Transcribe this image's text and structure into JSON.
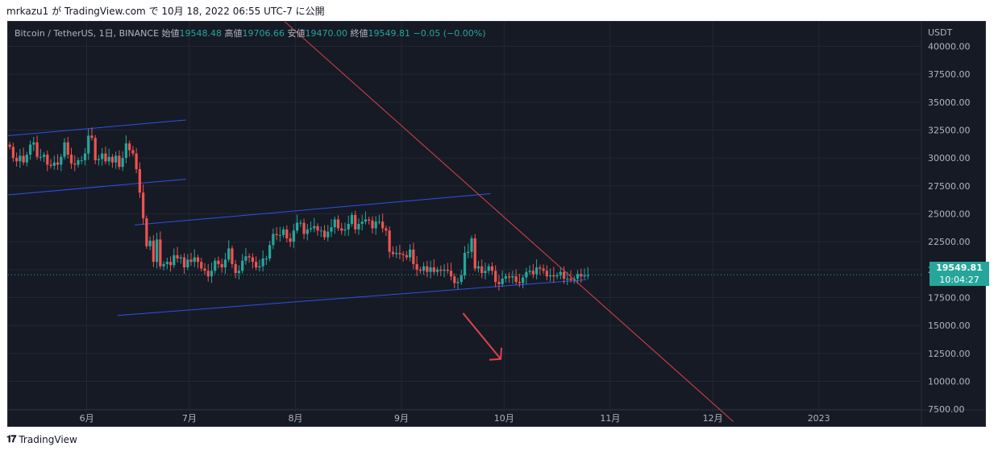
{
  "publish_line": {
    "user": "mrkazu1",
    "text": " が TradingView.com で 10月 18, 2022 06:55 UTC-7 に公開"
  },
  "legend": {
    "symbol": "Bitcoin / TetherUS, 1日, BINANCE",
    "open_label": "始値",
    "open": "19548.48",
    "high_label": "高値",
    "high": "19706.66",
    "low_label": "安値",
    "low": "19470.00",
    "close_label": "終値",
    "close": "19549.81",
    "change": "−0.05 (−0.00%)"
  },
  "price_axis": {
    "currency": "USDT",
    "current_price": "19549.81",
    "countdown": "10:04:27"
  },
  "footer": {
    "brand": "TradingView"
  },
  "colors": {
    "up": "#26a69a",
    "down": "#ef5350",
    "channel": "#2d52e6",
    "trend": "#e0404a",
    "bg": "#161a25"
  },
  "chart_data": {
    "type": "candlestick",
    "title": "Bitcoin / TetherUS, 1日, BINANCE",
    "ylim": [
      6000,
      42200
    ],
    "yticks": [
      40000,
      37500,
      35000,
      32500,
      30000,
      27500,
      25000,
      22500,
      20000,
      17500,
      15000,
      12500,
      10000,
      7500
    ],
    "x_start": "2022-05-09",
    "x_end": "2023-01-31",
    "xticks": [
      {
        "date": "2022-06-01",
        "label": "6月"
      },
      {
        "date": "2022-07-01",
        "label": "7月"
      },
      {
        "date": "2022-08-01",
        "label": "8月"
      },
      {
        "date": "2022-09-01",
        "label": "9月"
      },
      {
        "date": "2022-10-01",
        "label": "10月"
      },
      {
        "date": "2022-11-01",
        "label": "11月"
      },
      {
        "date": "2022-12-01",
        "label": "12月"
      },
      {
        "date": "2023-01-01",
        "label": "2023"
      }
    ],
    "close_start": "2022-05-09",
    "closes": [
      31000,
      30000,
      29700,
      30200,
      29600,
      30300,
      31200,
      31400,
      30100,
      30100,
      30300,
      29400,
      29300,
      29600,
      29400,
      30100,
      31400,
      30300,
      29500,
      29400,
      29800,
      29800,
      30400,
      32000,
      31800,
      29800,
      29900,
      30400,
      29700,
      30100,
      29600,
      30200,
      29200,
      30000,
      31300,
      30700,
      30400,
      29000,
      26900,
      24600,
      22100,
      22600,
      20700,
      22700,
      20300,
      20500,
      20700,
      20400,
      21300,
      21000,
      21100,
      20200,
      20900,
      20700,
      21100,
      20700,
      20100,
      19900,
      19400,
      19900,
      20800,
      20500,
      20200,
      20900,
      21900,
      20500,
      19700,
      19900,
      20800,
      21200,
      21100,
      20700,
      20200,
      20300,
      21000,
      21000,
      22200,
      23200,
      23100,
      23100,
      23600,
      22800,
      22500,
      23500,
      24200,
      24200,
      23200,
      23600,
      23700,
      23900,
      23500,
      23500,
      22900,
      23400,
      23800,
      24500,
      23700,
      23500,
      23600,
      24100,
      24900,
      23600,
      24100,
      24300,
      24500,
      24400,
      23700,
      24300,
      24300,
      23700,
      23500,
      21600,
      21400,
      21500,
      21400,
      21300,
      21100,
      21800,
      20500,
      20000,
      19900,
      20300,
      19800,
      20200,
      19800,
      20000,
      19900,
      20000,
      19900,
      19400,
      18800,
      18900,
      19500,
      21500,
      21600,
      22800,
      20100,
      20300,
      19700,
      19900,
      20300,
      19900,
      18900,
      18700,
      19200,
      19400,
      19300,
      19400,
      18900,
      18800,
      19300,
      19800,
      19900,
      19600,
      20200,
      20100,
      19900,
      19400,
      19500,
      19400,
      19500,
      19800,
      19200,
      19200,
      19100,
      19200,
      19600,
      19400,
      19500,
      19500
    ],
    "channels": [
      {
        "x1": "2022-05-09",
        "y1": 32000,
        "x2": "2022-06-30",
        "y2": 33400
      },
      {
        "x1": "2022-05-09",
        "y1": 26700,
        "x2": "2022-06-30",
        "y2": 28100
      },
      {
        "x1": "2022-06-15",
        "y1": 24000,
        "x2": "2022-09-27",
        "y2": 26800
      },
      {
        "x1": "2022-06-10",
        "y1": 15900,
        "x2": "2022-10-25",
        "y2": 19100
      }
    ],
    "trendline": {
      "x1": "2022-07-26",
      "y1": 43000,
      "x2": "2022-12-07",
      "y2": 6400
    },
    "arrow": {
      "x1": "2022-09-19",
      "y1": 16100,
      "x2": "2022-09-30",
      "y2": 12000
    }
  }
}
